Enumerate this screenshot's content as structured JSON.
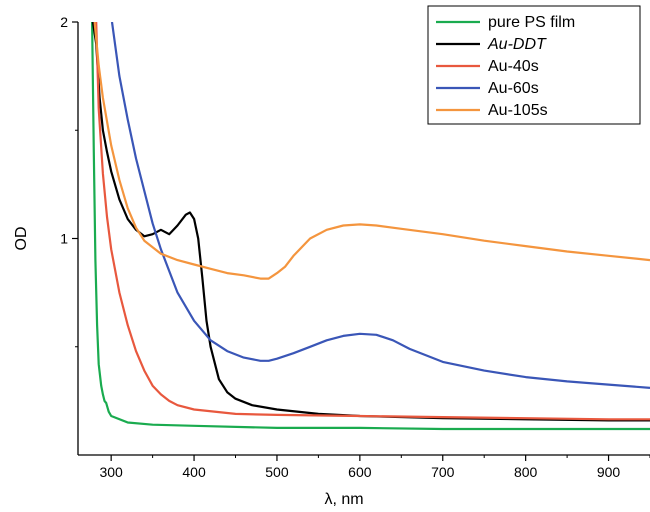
{
  "chart_data": {
    "type": "line",
    "title": "",
    "xlabel": "λ, nm",
    "ylabel": "OD",
    "xlim": [
      260,
      950
    ],
    "ylim": [
      0.0,
      2.0
    ],
    "x_ticks": [
      300,
      400,
      500,
      600,
      700,
      800,
      900
    ],
    "y_ticks": [
      1,
      2
    ],
    "x_tick_labels": [
      "300",
      "400",
      "500",
      "600",
      "700",
      "800",
      "900"
    ],
    "y_tick_labels": [
      "1",
      "2"
    ],
    "grid": false,
    "legend_position": "top-right",
    "series": [
      {
        "name": "pure PS film",
        "color": "#1aab4f",
        "italic": false,
        "points": [
          [
            277,
            2.0
          ],
          [
            279,
            1.4
          ],
          [
            281,
            0.9
          ],
          [
            283,
            0.6
          ],
          [
            285,
            0.42
          ],
          [
            288,
            0.32
          ],
          [
            290,
            0.28
          ],
          [
            292,
            0.25
          ],
          [
            294,
            0.24
          ],
          [
            297,
            0.2
          ],
          [
            300,
            0.18
          ],
          [
            320,
            0.15
          ],
          [
            350,
            0.14
          ],
          [
            400,
            0.135
          ],
          [
            500,
            0.125
          ],
          [
            600,
            0.125
          ],
          [
            700,
            0.12
          ],
          [
            800,
            0.12
          ],
          [
            900,
            0.12
          ],
          [
            950,
            0.12
          ]
        ]
      },
      {
        "name": "Au-DDT",
        "color": "#000000",
        "italic": true,
        "points": [
          [
            278,
            2.0
          ],
          [
            282,
            1.9
          ],
          [
            286,
            1.65
          ],
          [
            290,
            1.5
          ],
          [
            295,
            1.4
          ],
          [
            300,
            1.31
          ],
          [
            310,
            1.18
          ],
          [
            320,
            1.09
          ],
          [
            330,
            1.04
          ],
          [
            340,
            1.01
          ],
          [
            350,
            1.02
          ],
          [
            360,
            1.04
          ],
          [
            370,
            1.02
          ],
          [
            380,
            1.06
          ],
          [
            390,
            1.11
          ],
          [
            395,
            1.12
          ],
          [
            400,
            1.09
          ],
          [
            405,
            1.0
          ],
          [
            410,
            0.82
          ],
          [
            415,
            0.62
          ],
          [
            420,
            0.5
          ],
          [
            430,
            0.35
          ],
          [
            440,
            0.29
          ],
          [
            450,
            0.26
          ],
          [
            470,
            0.23
          ],
          [
            500,
            0.21
          ],
          [
            550,
            0.19
          ],
          [
            600,
            0.18
          ],
          [
            700,
            0.17
          ],
          [
            800,
            0.165
          ],
          [
            900,
            0.16
          ],
          [
            950,
            0.16
          ]
        ]
      },
      {
        "name": "Au-40s",
        "color": "#e8583e",
        "italic": false,
        "points": [
          [
            282,
            2.0
          ],
          [
            285,
            1.6
          ],
          [
            290,
            1.3
          ],
          [
            295,
            1.1
          ],
          [
            300,
            0.95
          ],
          [
            310,
            0.75
          ],
          [
            320,
            0.6
          ],
          [
            330,
            0.48
          ],
          [
            340,
            0.39
          ],
          [
            350,
            0.32
          ],
          [
            360,
            0.28
          ],
          [
            370,
            0.25
          ],
          [
            380,
            0.23
          ],
          [
            400,
            0.21
          ],
          [
            450,
            0.19
          ],
          [
            500,
            0.185
          ],
          [
            600,
            0.18
          ],
          [
            700,
            0.175
          ],
          [
            800,
            0.17
          ],
          [
            900,
            0.165
          ],
          [
            950,
            0.165
          ]
        ]
      },
      {
        "name": "Au-60s",
        "color": "#3a56b7",
        "italic": false,
        "points": [
          [
            301,
            2.0
          ],
          [
            310,
            1.75
          ],
          [
            320,
            1.55
          ],
          [
            330,
            1.37
          ],
          [
            340,
            1.22
          ],
          [
            350,
            1.07
          ],
          [
            360,
            0.95
          ],
          [
            370,
            0.85
          ],
          [
            380,
            0.75
          ],
          [
            400,
            0.62
          ],
          [
            420,
            0.53
          ],
          [
            440,
            0.48
          ],
          [
            460,
            0.45
          ],
          [
            480,
            0.435
          ],
          [
            490,
            0.435
          ],
          [
            500,
            0.445
          ],
          [
            520,
            0.47
          ],
          [
            540,
            0.5
          ],
          [
            560,
            0.53
          ],
          [
            580,
            0.55
          ],
          [
            600,
            0.56
          ],
          [
            620,
            0.555
          ],
          [
            640,
            0.53
          ],
          [
            660,
            0.49
          ],
          [
            680,
            0.46
          ],
          [
            700,
            0.43
          ],
          [
            750,
            0.39
          ],
          [
            800,
            0.36
          ],
          [
            850,
            0.34
          ],
          [
            900,
            0.325
          ],
          [
            950,
            0.31
          ]
        ]
      },
      {
        "name": "Au-105s",
        "color": "#f4953e",
        "italic": false,
        "points": [
          [
            280,
            2.0
          ],
          [
            285,
            1.8
          ],
          [
            290,
            1.65
          ],
          [
            300,
            1.43
          ],
          [
            310,
            1.27
          ],
          [
            320,
            1.14
          ],
          [
            330,
            1.05
          ],
          [
            340,
            0.99
          ],
          [
            360,
            0.93
          ],
          [
            380,
            0.9
          ],
          [
            400,
            0.88
          ],
          [
            420,
            0.86
          ],
          [
            440,
            0.84
          ],
          [
            460,
            0.83
          ],
          [
            480,
            0.815
          ],
          [
            490,
            0.815
          ],
          [
            500,
            0.84
          ],
          [
            510,
            0.87
          ],
          [
            520,
            0.92
          ],
          [
            540,
            1.0
          ],
          [
            560,
            1.04
          ],
          [
            580,
            1.06
          ],
          [
            600,
            1.065
          ],
          [
            620,
            1.06
          ],
          [
            650,
            1.045
          ],
          [
            700,
            1.02
          ],
          [
            750,
            0.99
          ],
          [
            800,
            0.965
          ],
          [
            850,
            0.94
          ],
          [
            900,
            0.92
          ],
          [
            950,
            0.9
          ]
        ]
      }
    ]
  }
}
